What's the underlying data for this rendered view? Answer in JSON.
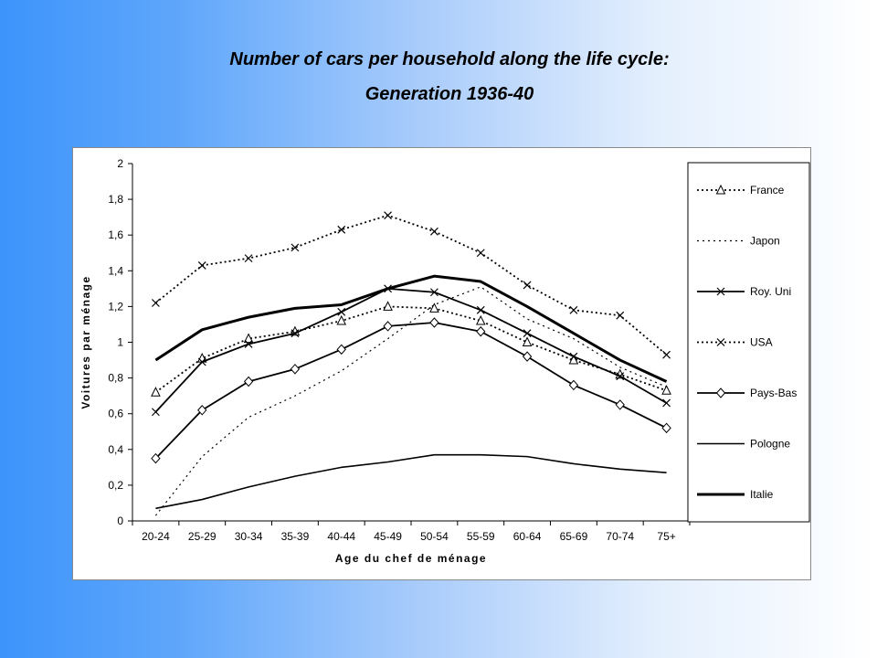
{
  "title_line1": "Number of cars per household along the life cycle:",
  "title_line2": "Generation 1936-40",
  "chart_data": {
    "type": "line",
    "xlabel": "Age du chef de ménage",
    "ylabel": "Voitures par ménage",
    "categories": [
      "20-24",
      "25-29",
      "30-34",
      "35-39",
      "40-44",
      "45-49",
      "50-54",
      "55-59",
      "60-64",
      "65-69",
      "70-74",
      "75+"
    ],
    "ylim": [
      0,
      2
    ],
    "yticks": [
      "0",
      "0,2",
      "0,4",
      "0,6",
      "0,8",
      "1",
      "1,2",
      "1,4",
      "1,6",
      "1,8",
      "2"
    ],
    "legend_position": "right",
    "series": [
      {
        "name": "France",
        "style": "dotted-triangle",
        "color": "#000000",
        "values": [
          0.72,
          0.91,
          1.02,
          1.06,
          1.12,
          1.2,
          1.19,
          1.12,
          1.0,
          0.9,
          0.82,
          0.73
        ]
      },
      {
        "name": "Japon",
        "style": "dotted",
        "color": "#000000",
        "values": [
          0.03,
          0.36,
          0.58,
          0.7,
          0.84,
          1.02,
          1.21,
          1.31,
          1.13,
          1.02,
          0.86,
          0.75
        ]
      },
      {
        "name": "Roy. Uni",
        "style": "solid-x",
        "color": "#000000",
        "values": [
          0.61,
          0.89,
          0.99,
          1.05,
          1.17,
          1.3,
          1.28,
          1.18,
          1.05,
          0.92,
          0.81,
          0.66
        ]
      },
      {
        "name": "USA",
        "style": "dotted-x",
        "color": "#000000",
        "values": [
          1.22,
          1.43,
          1.47,
          1.53,
          1.63,
          1.71,
          1.62,
          1.5,
          1.32,
          1.18,
          1.15,
          0.93
        ]
      },
      {
        "name": "Pays-Bas",
        "style": "solid-diamond",
        "color": "#000000",
        "values": [
          0.35,
          0.62,
          0.78,
          0.85,
          0.96,
          1.09,
          1.11,
          1.06,
          0.92,
          0.76,
          0.65,
          0.52
        ]
      },
      {
        "name": "Pologne",
        "style": "solid-thin",
        "color": "#000000",
        "values": [
          0.07,
          0.12,
          0.19,
          0.25,
          0.3,
          0.33,
          0.37,
          0.37,
          0.36,
          0.32,
          0.29,
          0.27
        ]
      },
      {
        "name": "Italie",
        "style": "solid-thick",
        "color": "#000000",
        "values": [
          0.9,
          1.07,
          1.14,
          1.19,
          1.21,
          1.3,
          1.37,
          1.34,
          1.2,
          1.05,
          0.9,
          0.78
        ]
      }
    ]
  }
}
